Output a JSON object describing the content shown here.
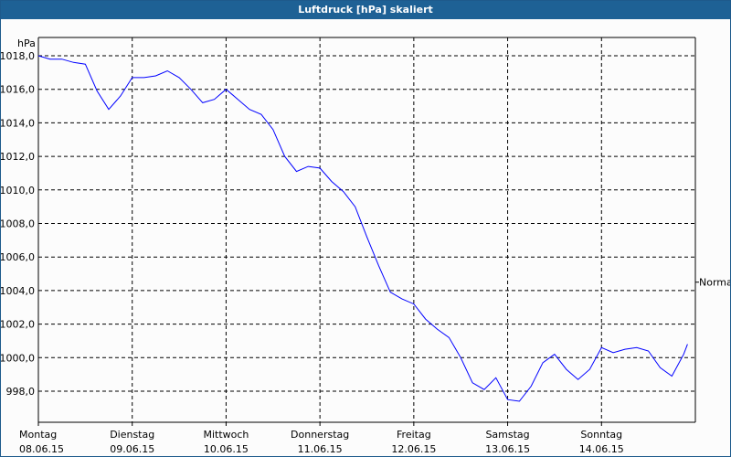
{
  "window": {
    "title": "Luftdruck [hPa] skaliert",
    "accent": "#1e6195"
  },
  "chart_data": {
    "type": "line",
    "title": "Luftdruck [hPa] skaliert",
    "ylabel": "hPa",
    "ylim": [
      997.0,
      1019.0
    ],
    "xlim": [
      "2015-06-08 00:00",
      "2015-06-15 00:00"
    ],
    "yticks": [
      998,
      1000,
      1002,
      1004,
      1006,
      1008,
      1010,
      1012,
      1014,
      1016,
      1018
    ],
    "ytick_labels": [
      "998,0",
      "1000,0",
      "1002,0",
      "1004,0",
      "1006,0",
      "1008,0",
      "1010,0",
      "1012,0",
      "1014,0",
      "1016,0",
      "1018,0"
    ],
    "xticks": [
      {
        "day": "Montag",
        "date": "08.06.15"
      },
      {
        "day": "Dienstag",
        "date": "09.06.15"
      },
      {
        "day": "Mittwoch",
        "date": "10.06.15"
      },
      {
        "day": "Donnerstag",
        "date": "11.06.15"
      },
      {
        "day": "Freitag",
        "date": "12.06.15"
      },
      {
        "day": "Samstag",
        "date": "13.06.15"
      },
      {
        "day": "Sonntag",
        "date": "14.06.15"
      }
    ],
    "grid": true,
    "reference_line": {
      "label": "Normal",
      "value": 1004.5
    },
    "series": [
      {
        "color": "#0000ff",
        "x": [
          "2015-06-08 00:00",
          "2015-06-08 03:00",
          "2015-06-08 06:00",
          "2015-06-08 09:00",
          "2015-06-08 12:00",
          "2015-06-08 15:00",
          "2015-06-08 18:00",
          "2015-06-08 21:00",
          "2015-06-09 00:00",
          "2015-06-09 03:00",
          "2015-06-09 06:00",
          "2015-06-09 09:00",
          "2015-06-09 12:00",
          "2015-06-09 15:00",
          "2015-06-09 18:00",
          "2015-06-09 21:00",
          "2015-06-10 00:00",
          "2015-06-10 03:00",
          "2015-06-10 06:00",
          "2015-06-10 09:00",
          "2015-06-10 12:00",
          "2015-06-10 15:00",
          "2015-06-10 18:00",
          "2015-06-10 21:00",
          "2015-06-11 00:00",
          "2015-06-11 03:00",
          "2015-06-11 06:00",
          "2015-06-11 09:00",
          "2015-06-11 12:00",
          "2015-06-11 15:00",
          "2015-06-11 18:00",
          "2015-06-11 21:00",
          "2015-06-12 00:00",
          "2015-06-12 03:00",
          "2015-06-12 06:00",
          "2015-06-12 09:00",
          "2015-06-12 12:00",
          "2015-06-12 15:00",
          "2015-06-12 18:00",
          "2015-06-12 21:00",
          "2015-06-13 00:00",
          "2015-06-13 03:00",
          "2015-06-13 06:00",
          "2015-06-13 09:00",
          "2015-06-13 12:00",
          "2015-06-13 15:00",
          "2015-06-13 18:00",
          "2015-06-13 21:00",
          "2015-06-14 00:00",
          "2015-06-14 03:00",
          "2015-06-14 06:00",
          "2015-06-14 09:00",
          "2015-06-14 12:00",
          "2015-06-14 15:00",
          "2015-06-14 18:00",
          "2015-06-14 21:00",
          "2015-06-14 22:00"
        ],
        "y": [
          1018.0,
          1017.8,
          1017.8,
          1017.6,
          1017.5,
          1015.9,
          1014.8,
          1015.6,
          1016.7,
          1016.7,
          1016.8,
          1017.1,
          1016.7,
          1016.0,
          1015.2,
          1015.4,
          1016.0,
          1015.4,
          1014.8,
          1014.5,
          1013.6,
          1012.0,
          1011.1,
          1011.4,
          1011.3,
          1010.5,
          1009.9,
          1009.0,
          1007.2,
          1005.5,
          1003.9,
          1003.5,
          1003.2,
          1002.3,
          1001.7,
          1001.2,
          1000.0,
          998.5,
          998.1,
          998.8,
          997.5,
          997.4,
          998.3,
          999.7,
          1000.2,
          999.3,
          998.7,
          999.3,
          1000.6,
          1000.3,
          1000.5,
          1000.6,
          1000.4,
          999.4,
          998.9,
          1000.2,
          1000.8
        ]
      }
    ]
  }
}
